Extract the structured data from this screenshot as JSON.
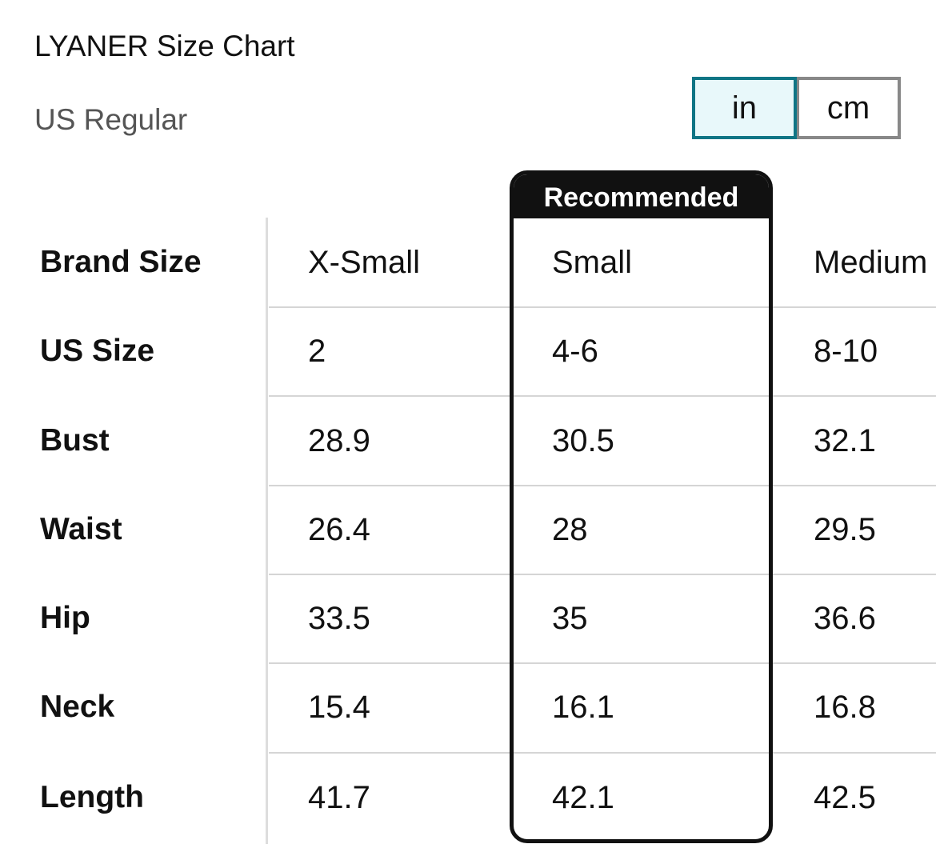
{
  "header": {
    "title": "LYANER Size Chart",
    "subtitle": "US Regular"
  },
  "unit_toggle": {
    "options": [
      "in",
      "cm"
    ],
    "selected_index": 0
  },
  "recommended": {
    "label": "Recommended",
    "column": 2
  },
  "table": {
    "rows": [
      [
        "Brand Size",
        "X-Small",
        "Small",
        "Medium"
      ],
      [
        "US Size",
        "2",
        "4-6",
        "8-10"
      ],
      [
        "Bust",
        "28.9",
        "30.5",
        "32.1"
      ],
      [
        "Waist",
        "26.4",
        "28",
        "29.5"
      ],
      [
        "Hip",
        "33.5",
        "35",
        "36.6"
      ],
      [
        "Neck",
        "15.4",
        "16.1",
        "16.8"
      ],
      [
        "Length",
        "41.7",
        "42.1",
        "42.5"
      ]
    ]
  }
}
